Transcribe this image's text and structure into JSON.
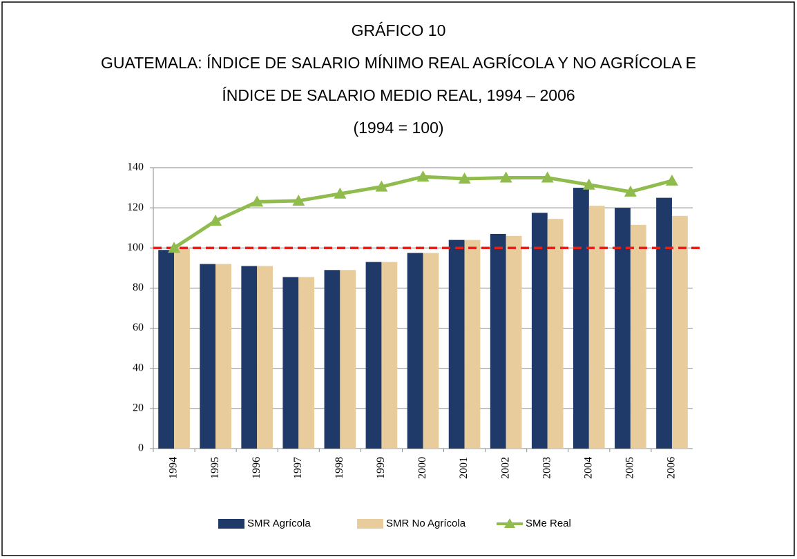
{
  "chart_data": {
    "type": "bar",
    "title_lines": [
      "GRÁFICO 10",
      "GUATEMALA: ÍNDICE DE SALARIO MÍNIMO REAL AGRÍCOLA Y NO AGRÍCOLA E",
      "ÍNDICE DE SALARIO MEDIO REAL, 1994 – 2006",
      "(1994 = 100)"
    ],
    "categories": [
      "1994",
      "1995",
      "1996",
      "1997",
      "1998",
      "1999",
      "2000",
      "2001",
      "2002",
      "2003",
      "2004",
      "2005",
      "2006"
    ],
    "series": [
      {
        "name": "SMR Agrícola",
        "type": "bar",
        "color": "#1f3a68",
        "values": [
          99,
          92,
          91,
          85.5,
          89,
          93,
          97.5,
          104,
          107,
          117.5,
          130,
          120,
          125
        ]
      },
      {
        "name": "SMR No Agrícola",
        "type": "bar",
        "color": "#e8cc9c",
        "values": [
          100,
          92,
          91,
          85.5,
          89,
          93,
          97.5,
          104,
          106,
          114.5,
          121,
          111.5,
          116
        ]
      },
      {
        "name": "SMe Real",
        "type": "line",
        "color": "#8fbc4c",
        "values": [
          100,
          113.5,
          123,
          123.5,
          127,
          130.5,
          135.5,
          134.5,
          135,
          135,
          131.5,
          128,
          133.5
        ]
      }
    ],
    "reference_line": {
      "value": 100,
      "color": "#e3211b"
    },
    "ylim": [
      0,
      140
    ],
    "yticks": [
      0,
      20,
      40,
      60,
      80,
      100,
      120,
      140
    ],
    "grid": true,
    "legend": "bottom"
  }
}
